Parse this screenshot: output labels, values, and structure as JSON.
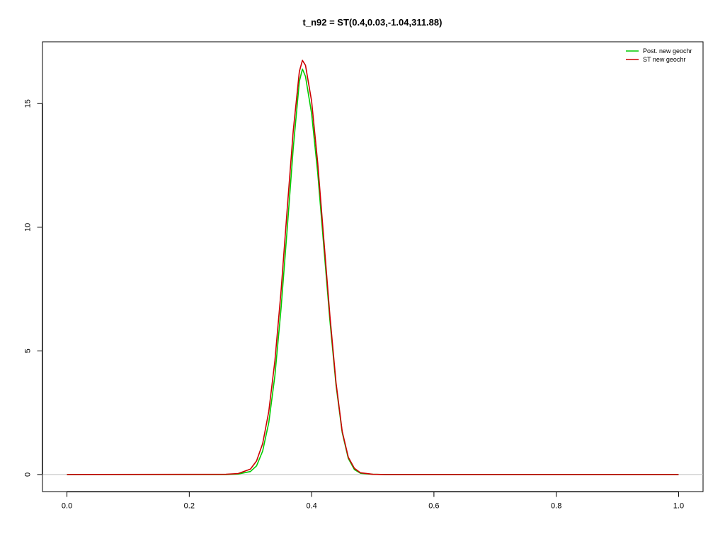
{
  "chart_data": {
    "type": "line",
    "title": "t_n92 = ST(0.4,0.03,-1.04,311.88)",
    "xlabel": "",
    "ylabel": "",
    "xlim": [
      -0.04,
      1.04
    ],
    "ylim": [
      -0.69,
      17.5
    ],
    "grid": false,
    "reference_line": {
      "y": 0,
      "color": "#bebebe"
    },
    "x_ticks": [
      0.0,
      0.2,
      0.4,
      0.6,
      0.8,
      1.0
    ],
    "x_tick_labels": [
      "0.0",
      "0.2",
      "0.4",
      "0.6",
      "0.8",
      "1.0"
    ],
    "y_ticks": [
      0,
      5,
      10,
      15
    ],
    "y_tick_labels": [
      "0",
      "5",
      "10",
      "15"
    ],
    "legend": {
      "position": "top-right",
      "entries": [
        {
          "label": "Post. new geochr",
          "color": "#00cc00"
        },
        {
          "label": "ST new geochr",
          "color": "#cc0000"
        }
      ]
    },
    "series": [
      {
        "name": "Post. new geochr",
        "color": "#00cc00",
        "x": [
          0.0,
          0.26,
          0.28,
          0.3,
          0.31,
          0.32,
          0.33,
          0.34,
          0.35,
          0.36,
          0.37,
          0.38,
          0.385,
          0.39,
          0.4,
          0.41,
          0.42,
          0.43,
          0.44,
          0.45,
          0.46,
          0.47,
          0.48,
          0.5,
          0.52,
          1.0
        ],
        "values": [
          0,
          0,
          0.02,
          0.12,
          0.35,
          0.95,
          2.1,
          4.0,
          6.7,
          9.9,
          13.2,
          15.9,
          16.4,
          16.1,
          14.6,
          12.2,
          9.2,
          6.2,
          3.6,
          1.7,
          0.65,
          0.2,
          0.05,
          0.01,
          0,
          0
        ]
      },
      {
        "name": "ST new geochr",
        "color": "#cc0000",
        "x": [
          0.0,
          0.26,
          0.28,
          0.3,
          0.31,
          0.32,
          0.33,
          0.34,
          0.35,
          0.36,
          0.37,
          0.38,
          0.385,
          0.39,
          0.4,
          0.41,
          0.42,
          0.43,
          0.44,
          0.45,
          0.46,
          0.47,
          0.48,
          0.5,
          0.52,
          1.0
        ],
        "values": [
          0,
          0.01,
          0.04,
          0.22,
          0.55,
          1.25,
          2.55,
          4.6,
          7.4,
          10.7,
          13.9,
          16.3,
          16.75,
          16.55,
          15.1,
          12.6,
          9.5,
          6.4,
          3.7,
          1.75,
          0.7,
          0.25,
          0.07,
          0.01,
          0,
          0
        ]
      }
    ]
  }
}
